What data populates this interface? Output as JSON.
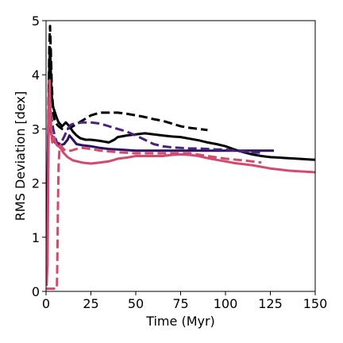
{
  "chart_data": {
    "type": "line",
    "title": "",
    "xlabel": "Time (Myr)",
    "ylabel": "RMS Deviation [dex]",
    "xlim": [
      0,
      150
    ],
    "ylim": [
      0,
      5
    ],
    "grid": false,
    "legend": "none",
    "xticks": [
      0,
      25,
      50,
      75,
      100,
      125,
      150
    ],
    "yticks": [
      0,
      1,
      2,
      3,
      4,
      5
    ],
    "xtick_labels": [
      "0",
      "25",
      "50",
      "75",
      "100",
      "125",
      "150"
    ],
    "ytick_labels": [
      "0",
      "1",
      "2",
      "3",
      "4",
      "5"
    ],
    "series": [
      {
        "color": "#000000",
        "style": "solid",
        "x": [
          0.3,
          0.8,
          1.3,
          1.8,
          2.2,
          2.7,
          3.2,
          4,
          5,
          6,
          7,
          9,
          11,
          13,
          15,
          17,
          19,
          22,
          25,
          30,
          35,
          38,
          40,
          45,
          50,
          55,
          60,
          65,
          70,
          75,
          80,
          85,
          90,
          95,
          100,
          105,
          110,
          115,
          120,
          125,
          130,
          135,
          140,
          145,
          150
        ],
        "y": [
          0.3,
          1.5,
          3.0,
          4.1,
          4.5,
          4.0,
          3.6,
          3.4,
          3.3,
          3.2,
          3.12,
          3.05,
          3.12,
          3.05,
          2.95,
          2.88,
          2.83,
          2.8,
          2.8,
          2.78,
          2.75,
          2.8,
          2.85,
          2.88,
          2.9,
          2.92,
          2.9,
          2.88,
          2.86,
          2.85,
          2.82,
          2.79,
          2.75,
          2.72,
          2.68,
          2.62,
          2.57,
          2.53,
          2.5,
          2.48,
          2.47,
          2.46,
          2.45,
          2.44,
          2.43
        ]
      },
      {
        "color": "#000000",
        "style": "dashed",
        "x": [
          1.3,
          1.8,
          2.2,
          2.7,
          3.2,
          4,
          5,
          7,
          9,
          12,
          15,
          20,
          25,
          30,
          35,
          40,
          45,
          50,
          55,
          60,
          65,
          70,
          75,
          80,
          85,
          90
        ],
        "y": [
          3.2,
          4.5,
          4.9,
          4.4,
          3.8,
          3.3,
          3.12,
          3.05,
          3.0,
          3.0,
          3.05,
          3.15,
          3.25,
          3.3,
          3.3,
          3.3,
          3.28,
          3.25,
          3.22,
          3.18,
          3.15,
          3.1,
          3.05,
          3.02,
          3.0,
          2.98
        ]
      },
      {
        "color": "#2e0f60",
        "style": "solid",
        "x": [
          0.5,
          1,
          1.5,
          2,
          3,
          4,
          5,
          6,
          8,
          10,
          12,
          13,
          15,
          17,
          20,
          25,
          30,
          35,
          40,
          50,
          60,
          70,
          80,
          90,
          100,
          110,
          120,
          127
        ],
        "y": [
          0.8,
          2.5,
          3.2,
          3.05,
          2.9,
          2.82,
          2.75,
          2.72,
          2.7,
          2.72,
          2.8,
          2.88,
          2.8,
          2.72,
          2.7,
          2.68,
          2.65,
          2.63,
          2.62,
          2.6,
          2.6,
          2.6,
          2.6,
          2.6,
          2.6,
          2.6,
          2.6,
          2.6
        ]
      },
      {
        "color": "#4a2380",
        "style": "dashed",
        "x": [
          1,
          1.5,
          2,
          3,
          4,
          5,
          6,
          8,
          10,
          12,
          14,
          16,
          20,
          25,
          30,
          35,
          40,
          45,
          50,
          55,
          60,
          65,
          70,
          75,
          80,
          85,
          90,
          95,
          100,
          105,
          110,
          115,
          120
        ],
        "y": [
          2.5,
          3.6,
          3.45,
          3.2,
          3.0,
          2.85,
          2.75,
          2.72,
          2.85,
          3.0,
          3.08,
          3.1,
          3.12,
          3.12,
          3.1,
          3.05,
          3.0,
          2.95,
          2.88,
          2.8,
          2.72,
          2.68,
          2.66,
          2.65,
          2.64,
          2.64,
          2.63,
          2.62,
          2.62,
          2.6,
          2.58,
          2.57,
          2.56
        ]
      },
      {
        "color": "#d24a6c",
        "style": "solid",
        "x": [
          0.3,
          0.8,
          1.2,
          1.6,
          2,
          2.5,
          3,
          3.5,
          4,
          4.5,
          5,
          6,
          7,
          8,
          9,
          10,
          12,
          15,
          20,
          25,
          30,
          35,
          40,
          45,
          50,
          55,
          60,
          65,
          70,
          75,
          80,
          85,
          90,
          95,
          100,
          105,
          110,
          115,
          120,
          125,
          130,
          135,
          140,
          145,
          150
        ],
        "y": [
          0.1,
          0.5,
          2.0,
          3.4,
          3.9,
          3.3,
          2.9,
          2.75,
          2.8,
          2.85,
          2.78,
          2.7,
          2.68,
          2.65,
          2.6,
          2.55,
          2.48,
          2.42,
          2.38,
          2.36,
          2.38,
          2.4,
          2.45,
          2.47,
          2.5,
          2.5,
          2.5,
          2.5,
          2.52,
          2.53,
          2.52,
          2.5,
          2.46,
          2.43,
          2.4,
          2.37,
          2.35,
          2.33,
          2.3,
          2.27,
          2.25,
          2.23,
          2.22,
          2.21,
          2.2
        ]
      },
      {
        "color": "#d24a6c",
        "style": "dashed",
        "x": [
          0.2,
          6,
          6.3,
          6.6,
          7,
          7.5,
          8,
          9,
          10,
          11,
          12,
          14,
          16,
          18,
          20,
          25,
          30,
          40,
          50,
          60,
          70,
          80,
          90,
          100,
          110,
          120
        ],
        "y": [
          0.05,
          0.05,
          0.5,
          1.5,
          2.3,
          2.65,
          2.7,
          2.66,
          2.62,
          2.6,
          2.6,
          2.6,
          2.62,
          2.64,
          2.65,
          2.63,
          2.6,
          2.57,
          2.55,
          2.55,
          2.55,
          2.55,
          2.5,
          2.45,
          2.42,
          2.38
        ]
      }
    ]
  }
}
